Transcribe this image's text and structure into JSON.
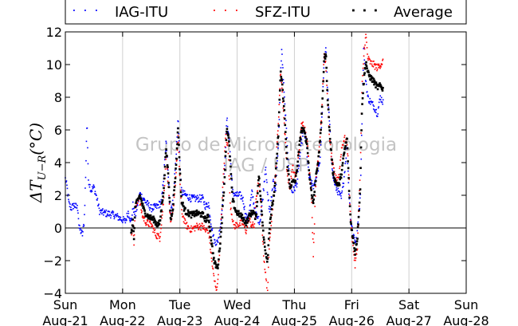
{
  "chart_data": {
    "type": "scatter",
    "ylabel": {
      "main": "ΔT",
      "sub": "U−R",
      "unit": "(°C)"
    },
    "ylim": [
      -4,
      12
    ],
    "xlim": [
      0,
      7
    ],
    "yticks": [
      "−4",
      "−2",
      "0",
      "2",
      "4",
      "6",
      "8",
      "10",
      "12"
    ],
    "ytick_values": [
      -4,
      -2,
      0,
      2,
      4,
      6,
      8,
      10,
      12
    ],
    "xticks": [
      {
        "day": "Sun",
        "date": "Aug-21"
      },
      {
        "day": "Mon",
        "date": "Aug-22"
      },
      {
        "day": "Tue",
        "date": "Aug-23"
      },
      {
        "day": "Wed",
        "date": "Aug-24"
      },
      {
        "day": "Thu",
        "date": "Aug-25"
      },
      {
        "day": "Fri",
        "date": "Aug-26"
      },
      {
        "day": "Sat",
        "date": "Aug-27"
      },
      {
        "day": "Sun",
        "date": "Aug-28"
      }
    ],
    "grid": "vertical",
    "zero_line": true,
    "legend_position": "top",
    "watermark": [
      "Grupo de Micrometeorologia",
      "IAG / USP"
    ],
    "series": [
      {
        "name": "IAG-ITU",
        "color": "#0000ff",
        "keypoints": [
          [
            0.0,
            3.0
          ],
          [
            0.03,
            2.5
          ],
          [
            0.06,
            1.5
          ],
          [
            0.1,
            1.2
          ],
          [
            0.15,
            1.4
          ],
          [
            0.22,
            1.2
          ],
          [
            0.24,
            0.0
          ],
          [
            0.3,
            -0.4
          ],
          [
            0.33,
            0.4
          ],
          [
            0.36,
            3.8
          ],
          [
            0.37,
            5.8
          ],
          [
            0.38,
            6.5
          ],
          [
            0.4,
            3.0
          ],
          [
            0.45,
            2.3
          ],
          [
            0.5,
            2.5
          ],
          [
            0.55,
            1.8
          ],
          [
            0.6,
            1.0
          ],
          [
            0.7,
            0.9
          ],
          [
            0.85,
            0.8
          ],
          [
            0.95,
            0.6
          ],
          [
            1.05,
            0.4
          ],
          [
            1.1,
            1.0
          ],
          [
            1.15,
            0.3
          ],
          [
            1.18,
            1.4
          ],
          [
            1.22,
            0.7
          ],
          [
            1.3,
            2.1
          ],
          [
            1.4,
            1.6
          ],
          [
            1.5,
            1.2
          ],
          [
            1.6,
            1.3
          ],
          [
            1.68,
            1.6
          ],
          [
            1.72,
            3.2
          ],
          [
            1.76,
            5.3
          ],
          [
            1.79,
            3.5
          ],
          [
            1.83,
            1.0
          ],
          [
            1.88,
            1.7
          ],
          [
            1.93,
            4.2
          ],
          [
            1.97,
            6.8
          ],
          [
            2.0,
            4.0
          ],
          [
            2.03,
            2.2
          ],
          [
            2.1,
            2.0
          ],
          [
            2.2,
            1.8
          ],
          [
            2.3,
            1.8
          ],
          [
            2.4,
            1.8
          ],
          [
            2.45,
            1.3
          ],
          [
            2.5,
            1.5
          ],
          [
            2.55,
            0.2
          ],
          [
            2.6,
            -0.8
          ],
          [
            2.66,
            -0.9
          ],
          [
            2.72,
            0.4
          ],
          [
            2.78,
            3.6
          ],
          [
            2.82,
            6.7
          ],
          [
            2.86,
            5.5
          ],
          [
            2.92,
            2.2
          ],
          [
            2.98,
            2.0
          ],
          [
            3.05,
            2.0
          ],
          [
            3.1,
            1.8
          ],
          [
            3.15,
            0.8
          ],
          [
            3.18,
            0.5
          ],
          [
            3.22,
            1.2
          ],
          [
            3.26,
            2.2
          ],
          [
            3.3,
            1.3
          ],
          [
            3.35,
            0.6
          ],
          [
            3.4,
            0.4
          ],
          [
            3.45,
            1.9
          ],
          [
            3.5,
            3.9
          ],
          [
            3.53,
            2.0
          ],
          [
            3.57,
            1.0
          ],
          [
            3.6,
            1.8
          ],
          [
            3.63,
            3.0
          ],
          [
            3.67,
            2.2
          ],
          [
            3.72,
            5.0
          ],
          [
            3.76,
            9.5
          ],
          [
            3.78,
            10.9
          ],
          [
            3.82,
            8.2
          ],
          [
            3.87,
            5.5
          ],
          [
            3.91,
            3.0
          ],
          [
            3.96,
            2.2
          ],
          [
            4.0,
            2.4
          ],
          [
            4.05,
            2.8
          ],
          [
            4.1,
            4.5
          ],
          [
            4.15,
            5.9
          ],
          [
            4.2,
            5.5
          ],
          [
            4.25,
            3.2
          ],
          [
            4.3,
            2.7
          ],
          [
            4.35,
            2.5
          ],
          [
            4.4,
            3.4
          ],
          [
            4.45,
            4.2
          ],
          [
            4.48,
            6.7
          ],
          [
            4.52,
            10.2
          ],
          [
            4.55,
            11.1
          ],
          [
            4.58,
            8.4
          ],
          [
            4.62,
            6.0
          ],
          [
            4.67,
            3.2
          ],
          [
            4.72,
            2.5
          ],
          [
            4.78,
            2.1
          ],
          [
            4.82,
            1.8
          ],
          [
            4.87,
            3.2
          ],
          [
            4.92,
            5.1
          ],
          [
            4.95,
            2.3
          ],
          [
            4.98,
            0.6
          ],
          [
            5.02,
            -0.3
          ],
          [
            5.08,
            -0.9
          ],
          [
            5.12,
            0.7
          ],
          [
            5.15,
            1.8
          ],
          [
            5.18,
            6.5
          ],
          [
            5.21,
            11.2
          ],
          [
            5.24,
            9.3
          ],
          [
            5.28,
            8.0
          ],
          [
            5.33,
            7.7
          ],
          [
            5.38,
            7.5
          ],
          [
            5.45,
            7.0
          ],
          [
            5.5,
            8.0
          ],
          [
            5.55,
            7.7
          ]
        ]
      },
      {
        "name": "SFZ-ITU",
        "color": "#ff0000",
        "keypoints": [
          [
            1.15,
            -0.5
          ],
          [
            1.18,
            0.3
          ],
          [
            1.2,
            -1.0
          ],
          [
            1.22,
            1.2
          ],
          [
            1.28,
            1.9
          ],
          [
            1.35,
            0.7
          ],
          [
            1.42,
            0.3
          ],
          [
            1.5,
            0.2
          ],
          [
            1.58,
            -0.4
          ],
          [
            1.65,
            -0.6
          ],
          [
            1.72,
            1.8
          ],
          [
            1.76,
            4.6
          ],
          [
            1.8,
            2.5
          ],
          [
            1.84,
            0.1
          ],
          [
            1.88,
            1.0
          ],
          [
            1.93,
            3.2
          ],
          [
            1.97,
            5.6
          ],
          [
            2.0,
            3.0
          ],
          [
            2.03,
            1.0
          ],
          [
            2.1,
            0.2
          ],
          [
            2.2,
            -0.1
          ],
          [
            2.3,
            0.1
          ],
          [
            2.4,
            0.1
          ],
          [
            2.45,
            -0.2
          ],
          [
            2.5,
            -0.1
          ],
          [
            2.55,
            -1.8
          ],
          [
            2.6,
            -3.2
          ],
          [
            2.65,
            -3.8
          ],
          [
            2.7,
            -1.0
          ],
          [
            2.75,
            2.5
          ],
          [
            2.8,
            5.7
          ],
          [
            2.84,
            5.0
          ],
          [
            2.88,
            1.5
          ],
          [
            2.94,
            0.1
          ],
          [
            3.0,
            0.2
          ],
          [
            3.1,
            0.3
          ],
          [
            3.16,
            -0.2
          ],
          [
            3.2,
            0.6
          ],
          [
            3.25,
            0.2
          ],
          [
            3.3,
            0.1
          ],
          [
            3.33,
            1.8
          ],
          [
            3.38,
            2.9
          ],
          [
            3.42,
            1.2
          ],
          [
            3.46,
            -1.5
          ],
          [
            3.5,
            -3.0
          ],
          [
            3.53,
            -4.0
          ],
          [
            3.57,
            -0.5
          ],
          [
            3.62,
            1.2
          ],
          [
            3.66,
            2.8
          ],
          [
            3.72,
            6.5
          ],
          [
            3.76,
            9.6
          ],
          [
            3.79,
            8.2
          ],
          [
            3.83,
            6.0
          ],
          [
            3.87,
            3.5
          ],
          [
            3.92,
            2.4
          ],
          [
            3.97,
            3.7
          ],
          [
            4.02,
            3.1
          ],
          [
            4.07,
            4.2
          ],
          [
            4.12,
            6.2
          ],
          [
            4.16,
            6.4
          ],
          [
            4.22,
            5.5
          ],
          [
            4.26,
            3.6
          ],
          [
            4.3,
            1.8
          ],
          [
            4.33,
            -1.6
          ],
          [
            4.38,
            3.2
          ],
          [
            4.43,
            4.8
          ],
          [
            4.48,
            7.2
          ],
          [
            4.52,
            10.6
          ],
          [
            4.55,
            10.0
          ],
          [
            4.58,
            7.5
          ],
          [
            4.62,
            5.2
          ],
          [
            4.67,
            3.8
          ],
          [
            4.72,
            3.0
          ],
          [
            4.78,
            3.2
          ],
          [
            4.82,
            4.8
          ],
          [
            4.87,
            5.5
          ],
          [
            4.92,
            5.2
          ],
          [
            4.95,
            3.3
          ],
          [
            4.98,
            0.5
          ],
          [
            5.02,
            -1.0
          ],
          [
            5.06,
            -2.3
          ],
          [
            5.1,
            -1.2
          ],
          [
            5.15,
            3.5
          ],
          [
            5.18,
            8.5
          ],
          [
            5.22,
            11.0
          ],
          [
            5.25,
            11.8
          ],
          [
            5.28,
            10.4
          ],
          [
            5.33,
            10.1
          ],
          [
            5.38,
            10.0
          ],
          [
            5.45,
            9.8
          ],
          [
            5.5,
            10.0
          ],
          [
            5.55,
            10.2
          ]
        ]
      },
      {
        "name": "Average",
        "color": "#000000",
        "keypoints": [
          [
            1.15,
            -0.4
          ],
          [
            1.18,
            0.4
          ],
          [
            1.2,
            -0.6
          ],
          [
            1.22,
            1.3
          ],
          [
            1.3,
            2.0
          ],
          [
            1.38,
            1.0
          ],
          [
            1.45,
            0.7
          ],
          [
            1.55,
            0.5
          ],
          [
            1.6,
            0.2
          ],
          [
            1.65,
            0.3
          ],
          [
            1.72,
            2.5
          ],
          [
            1.76,
            5.0
          ],
          [
            1.8,
            3.0
          ],
          [
            1.84,
            0.5
          ],
          [
            1.88,
            1.3
          ],
          [
            1.93,
            3.6
          ],
          [
            1.97,
            6.2
          ],
          [
            2.0,
            3.5
          ],
          [
            2.03,
            1.6
          ],
          [
            2.1,
            1.0
          ],
          [
            2.2,
            0.8
          ],
          [
            2.3,
            0.9
          ],
          [
            2.4,
            0.8
          ],
          [
            2.45,
            0.5
          ],
          [
            2.5,
            0.7
          ],
          [
            2.55,
            -0.8
          ],
          [
            2.6,
            -2.1
          ],
          [
            2.66,
            -2.5
          ],
          [
            2.72,
            -0.3
          ],
          [
            2.78,
            3.0
          ],
          [
            2.82,
            6.2
          ],
          [
            2.86,
            5.2
          ],
          [
            2.92,
            1.7
          ],
          [
            2.98,
            1.0
          ],
          [
            3.05,
            0.8
          ],
          [
            3.1,
            0.6
          ],
          [
            3.16,
            0.3
          ],
          [
            3.22,
            0.8
          ],
          [
            3.28,
            1.0
          ],
          [
            3.33,
            0.6
          ],
          [
            3.38,
            3.3
          ],
          [
            3.42,
            1.5
          ],
          [
            3.46,
            -0.5
          ],
          [
            3.5,
            -1.5
          ],
          [
            3.53,
            -2.0
          ],
          [
            3.57,
            0.3
          ],
          [
            3.62,
            1.5
          ],
          [
            3.66,
            2.5
          ],
          [
            3.72,
            5.8
          ],
          [
            3.76,
            9.6
          ],
          [
            3.79,
            8.6
          ],
          [
            3.83,
            6.8
          ],
          [
            3.87,
            4.2
          ],
          [
            3.92,
            2.5
          ],
          [
            3.97,
            2.8
          ],
          [
            4.02,
            2.9
          ],
          [
            4.07,
            4.4
          ],
          [
            4.12,
            6.0
          ],
          [
            4.16,
            6.0
          ],
          [
            4.22,
            5.2
          ],
          [
            4.26,
            3.3
          ],
          [
            4.3,
            2.2
          ],
          [
            4.33,
            1.5
          ],
          [
            4.38,
            3.3
          ],
          [
            4.43,
            4.5
          ],
          [
            4.48,
            7.0
          ],
          [
            4.52,
            10.4
          ],
          [
            4.55,
            10.6
          ],
          [
            4.58,
            8.0
          ],
          [
            4.62,
            5.6
          ],
          [
            4.67,
            3.5
          ],
          [
            4.72,
            2.8
          ],
          [
            4.78,
            2.6
          ],
          [
            4.82,
            3.3
          ],
          [
            4.87,
            4.6
          ],
          [
            4.92,
            5.5
          ],
          [
            4.95,
            2.8
          ],
          [
            4.98,
            0.5
          ],
          [
            5.02,
            -0.6
          ],
          [
            5.06,
            -1.5
          ],
          [
            5.1,
            -0.6
          ],
          [
            5.15,
            2.5
          ],
          [
            5.18,
            7.5
          ],
          [
            5.22,
            9.3
          ],
          [
            5.25,
            10.2
          ],
          [
            5.28,
            9.5
          ],
          [
            5.33,
            9.2
          ],
          [
            5.38,
            9.0
          ],
          [
            5.45,
            8.6
          ],
          [
            5.5,
            8.7
          ],
          [
            5.55,
            8.5
          ]
        ]
      }
    ]
  }
}
